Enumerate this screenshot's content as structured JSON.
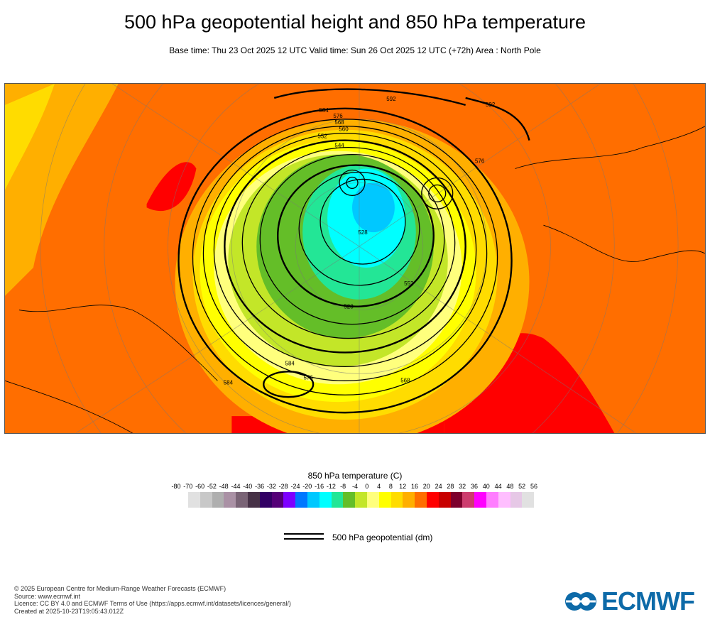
{
  "header": {
    "title": "500 hPa geopotential height and 850 hPa temperature",
    "subtitle": "Base time: Thu 23 Oct 2025 12 UTC Valid time: Sun 26 Oct 2025 12 UTC (+72h) Area : North Pole"
  },
  "chart_data": {
    "type": "heatmap",
    "title": "500 hPa geopotential height and 850 hPa temperature",
    "projection": "polar stereographic, North Pole",
    "contour_labels_dm": [
      "592",
      "592",
      "584",
      "576",
      "568",
      "560",
      "552",
      "544",
      "528",
      "576",
      "584",
      "576",
      "568",
      "584",
      "552",
      "528"
    ],
    "colorbar": {
      "title": "850 hPa temperature (C)",
      "ticks": [
        "-80",
        "-70",
        "-60",
        "-52",
        "-48",
        "-44",
        "-40",
        "-36",
        "-32",
        "-28",
        "-24",
        "-20",
        "-16",
        "-12",
        "-8",
        "-4",
        "0",
        "4",
        "8",
        "12",
        "16",
        "20",
        "24",
        "28",
        "32",
        "36",
        "40",
        "44",
        "48",
        "52",
        "56"
      ],
      "colors": [
        "#e1e1e1",
        "#c8c8c8",
        "#afafaf",
        "#aa91a5",
        "#7a6476",
        "#473247",
        "#320064",
        "#550078",
        "#7d00ff",
        "#0078ff",
        "#00c8ff",
        "#00ffff",
        "#23e696",
        "#64be28",
        "#c3e628",
        "#ffff7d",
        "#ffff00",
        "#ffdc00",
        "#ffaf00",
        "#ff6e00",
        "#ff0000",
        "#c80000",
        "#7d002d",
        "#cd3c6e",
        "#ff00ff",
        "#ff7dff",
        "#ffbeff",
        "#e6c8e6",
        "#e1e1e1"
      ]
    },
    "legend": {
      "line_label": "500 hPa geopotential (dm)"
    }
  },
  "footer": {
    "lines": [
      "© 2025 European Centre for Medium-Range Weather Forecasts (ECMWF)",
      "Source: www.ecmwf.int",
      "Licence: CC BY 4.0 and ECMWF Terms of Use (https://apps.ecmwf.int/datasets/licences/general/)",
      "Created at 2025-10-23T19:05:43.012Z"
    ],
    "logo": "ECMWF"
  }
}
